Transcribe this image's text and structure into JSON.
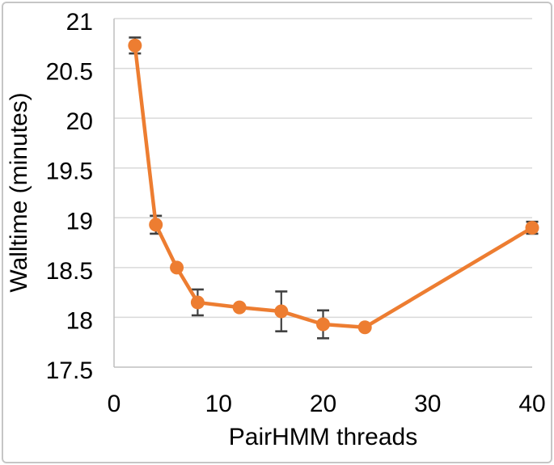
{
  "figure": {
    "background": "#ffffff",
    "border_color": "#c6c6c6"
  },
  "chart_data": {
    "type": "line",
    "title": "",
    "xlabel": "PairHMM threads",
    "ylabel": "Walltime (minutes)",
    "x": [
      2,
      4,
      6,
      8,
      12,
      16,
      20,
      24,
      40
    ],
    "series": [
      {
        "name": "walltime",
        "color": "#ED7D31",
        "values": [
          20.73,
          18.93,
          18.5,
          18.15,
          18.1,
          18.06,
          17.93,
          17.9,
          18.9
        ],
        "error": [
          0.08,
          0.09,
          0,
          0.13,
          0,
          0.2,
          0.14,
          0,
          0.06
        ]
      }
    ],
    "xlim": [
      0,
      40
    ],
    "ylim": [
      17.5,
      21
    ],
    "x_ticks": [
      0,
      10,
      20,
      30,
      40
    ],
    "y_ticks": [
      17.5,
      18,
      18.5,
      19,
      19.5,
      20,
      20.5,
      21
    ],
    "grid": "horizontal",
    "legend": "none",
    "gridline_color": "#d9d9d9",
    "axis_line_color": "#bfbfbf",
    "error_bar_color": "#404040",
    "tick_label_color": "#000000"
  }
}
